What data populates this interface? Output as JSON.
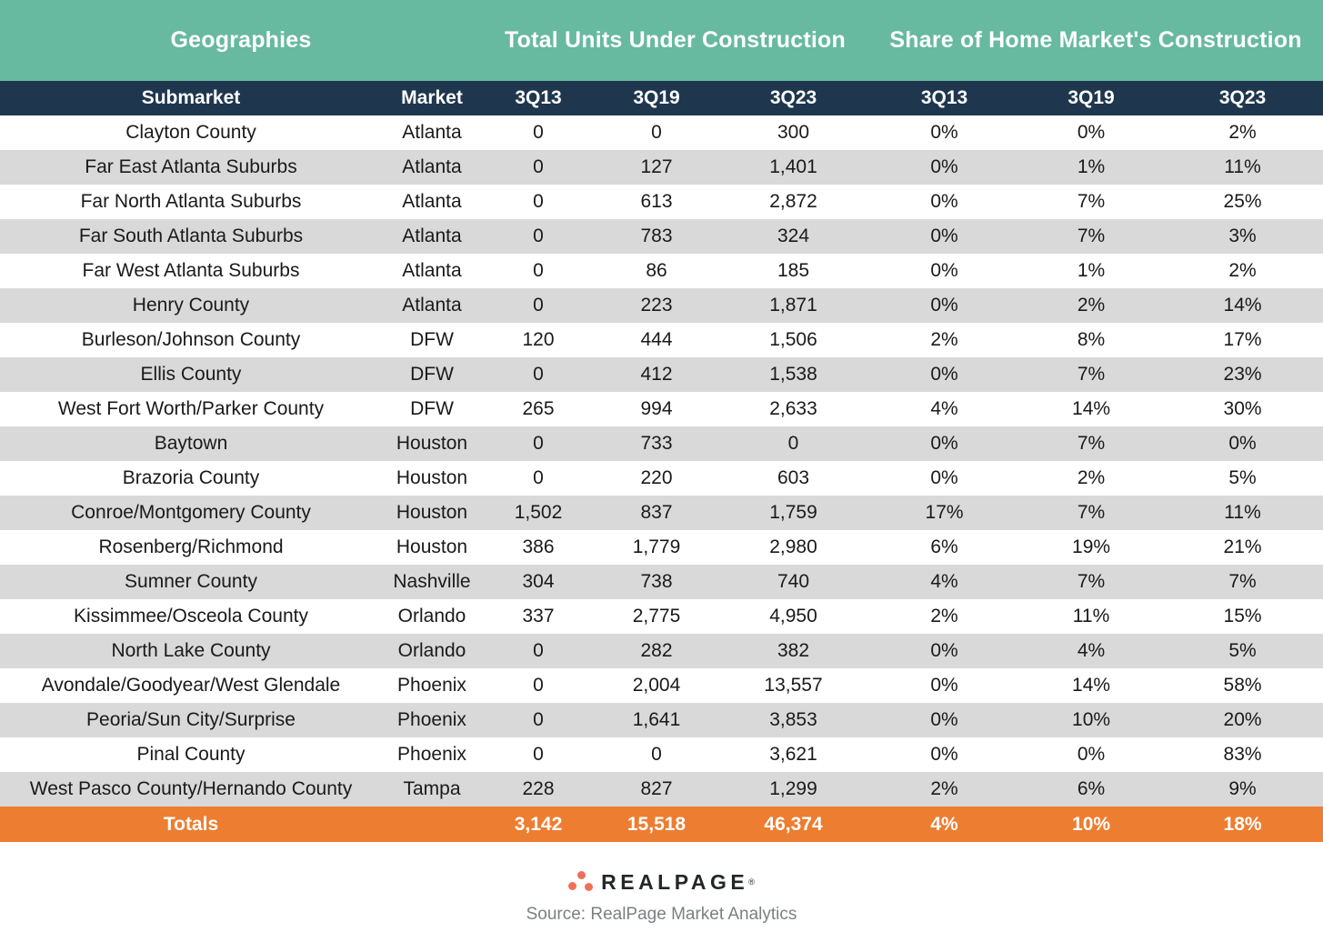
{
  "chart_data": {
    "type": "table",
    "group_headers": [
      {
        "label": "Geographies",
        "span": 2
      },
      {
        "label": "Total Units Under Construction",
        "span": 3
      },
      {
        "label": "Share of Home Market's Construction",
        "span": 3
      }
    ],
    "columns": [
      "Submarket",
      "Market",
      "3Q13",
      "3Q19",
      "3Q23",
      "3Q13",
      "3Q19",
      "3Q23"
    ],
    "rows": [
      [
        "Clayton County",
        "Atlanta",
        "0",
        "0",
        "300",
        "0%",
        "0%",
        "2%"
      ],
      [
        "Far East Atlanta Suburbs",
        "Atlanta",
        "0",
        "127",
        "1,401",
        "0%",
        "1%",
        "11%"
      ],
      [
        "Far North Atlanta Suburbs",
        "Atlanta",
        "0",
        "613",
        "2,872",
        "0%",
        "7%",
        "25%"
      ],
      [
        "Far South Atlanta Suburbs",
        "Atlanta",
        "0",
        "783",
        "324",
        "0%",
        "7%",
        "3%"
      ],
      [
        "Far West Atlanta Suburbs",
        "Atlanta",
        "0",
        "86",
        "185",
        "0%",
        "1%",
        "2%"
      ],
      [
        "Henry County",
        "Atlanta",
        "0",
        "223",
        "1,871",
        "0%",
        "2%",
        "14%"
      ],
      [
        "Burleson/Johnson County",
        "DFW",
        "120",
        "444",
        "1,506",
        "2%",
        "8%",
        "17%"
      ],
      [
        "Ellis County",
        "DFW",
        "0",
        "412",
        "1,538",
        "0%",
        "7%",
        "23%"
      ],
      [
        "West Fort Worth/Parker County",
        "DFW",
        "265",
        "994",
        "2,633",
        "4%",
        "14%",
        "30%"
      ],
      [
        "Baytown",
        "Houston",
        "0",
        "733",
        "0",
        "0%",
        "7%",
        "0%"
      ],
      [
        "Brazoria County",
        "Houston",
        "0",
        "220",
        "603",
        "0%",
        "2%",
        "5%"
      ],
      [
        "Conroe/Montgomery County",
        "Houston",
        "1,502",
        "837",
        "1,759",
        "17%",
        "7%",
        "11%"
      ],
      [
        "Rosenberg/Richmond",
        "Houston",
        "386",
        "1,779",
        "2,980",
        "6%",
        "19%",
        "21%"
      ],
      [
        "Sumner County",
        "Nashville",
        "304",
        "738",
        "740",
        "4%",
        "7%",
        "7%"
      ],
      [
        "Kissimmee/Osceola County",
        "Orlando",
        "337",
        "2,775",
        "4,950",
        "2%",
        "11%",
        "15%"
      ],
      [
        "North Lake County",
        "Orlando",
        "0",
        "282",
        "382",
        "0%",
        "4%",
        "5%"
      ],
      [
        "Avondale/Goodyear/West Glendale",
        "Phoenix",
        "0",
        "2,004",
        "13,557",
        "0%",
        "14%",
        "58%"
      ],
      [
        "Peoria/Sun City/Surprise",
        "Phoenix",
        "0",
        "1,641",
        "3,853",
        "0%",
        "10%",
        "20%"
      ],
      [
        "Pinal County",
        "Phoenix",
        "0",
        "0",
        "3,621",
        "0%",
        "0%",
        "83%"
      ],
      [
        "West Pasco County/Hernando County",
        "Tampa",
        "228",
        "827",
        "1,299",
        "2%",
        "6%",
        "9%"
      ]
    ],
    "totals": [
      "Totals",
      "",
      "3,142",
      "15,518",
      "46,374",
      "4%",
      "10%",
      "18%"
    ],
    "layout_hints": {
      "grid": "off",
      "row_striping": "alternate white / light-gray",
      "alignment": "all cells centered"
    }
  },
  "footer": {
    "logo_text": "REALPAGE",
    "trademark": "®",
    "source": "Source: RealPage Market Analytics"
  },
  "colors": {
    "group_header_bg": "#67B9A0",
    "column_header_bg": "#1F374E",
    "totals_bg": "#ED7D31",
    "row_alt_bg": "#D9D9D9",
    "logo_dot": "#EF7059",
    "logo_text": "#23272A",
    "source_text": "#7C8083"
  }
}
